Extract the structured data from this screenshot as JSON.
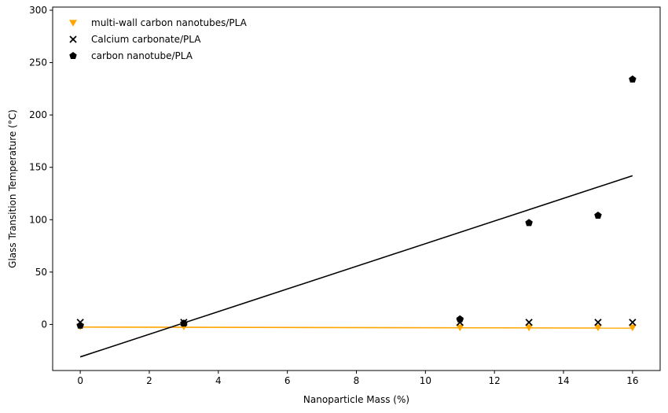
{
  "chart_data": {
    "type": "scatter",
    "xlabel": "Nanoparticle Mass (%)",
    "ylabel": "Glass Transition Temperature (°C)",
    "xlim": [
      -0.8,
      16.8
    ],
    "ylim": [
      -44,
      303
    ],
    "xticks": [
      0,
      2,
      4,
      6,
      8,
      10,
      12,
      14,
      16
    ],
    "yticks": [
      0,
      50,
      100,
      150,
      200,
      250,
      300
    ],
    "grid": false,
    "legend_position": "top-left",
    "series": [
      {
        "name": "multi-wall carbon nanotubes/PLA",
        "marker": "triangle-down",
        "color": "#ffa500",
        "x": [
          0,
          3,
          11,
          13,
          15,
          16
        ],
        "y": [
          -2,
          -2,
          -3,
          -3,
          -3,
          -3
        ]
      },
      {
        "name": "Calcium carbonate/PLA",
        "marker": "x",
        "color": "#000000",
        "x": [
          0,
          3,
          11,
          13,
          15,
          16
        ],
        "y": [
          2,
          2,
          2,
          2,
          2,
          2
        ]
      },
      {
        "name": "carbon nanotube/PLA",
        "marker": "pentagon",
        "color": "#000000",
        "x": [
          0,
          3,
          11,
          13,
          15,
          16
        ],
        "y": [
          -1,
          1,
          5,
          97,
          104,
          234
        ]
      }
    ],
    "trend_lines": [
      {
        "color": "#ffa500",
        "x": [
          0,
          16
        ],
        "y": [
          -2.5,
          -3.5
        ]
      },
      {
        "color": "#000000",
        "x": [
          0,
          16
        ],
        "y": [
          -31,
          142
        ]
      }
    ]
  }
}
